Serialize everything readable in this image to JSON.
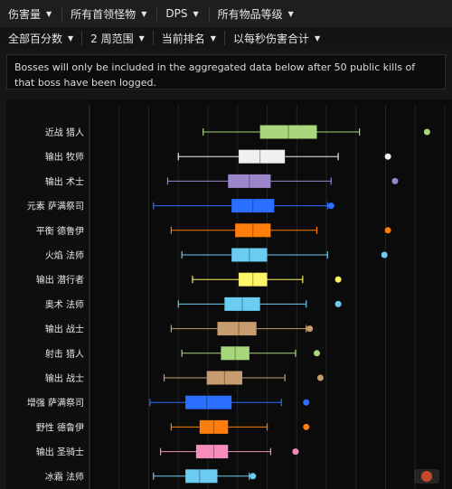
{
  "filters_top": [
    "伤害量",
    "所有首领怪物",
    "DPS",
    "所有物品等级"
  ],
  "filters_sub": [
    "全部百分数",
    "2 周范围",
    "当前排名",
    "以每秒伤害合计"
  ],
  "notice": "Bosses will only be included in the aggregated data below after 50 public kills of that boss have been logged.",
  "chart_data": {
    "type": "box",
    "grid": true,
    "categories": [
      "近战 猎人",
      "输出 牧师",
      "输出 术士",
      "元素 萨满祭司",
      "平衡 德鲁伊",
      "火焰 法师",
      "输出 潜行者",
      "奥术 法师",
      "输出 战士",
      "射击 猎人",
      "输出 战士",
      "增强 萨满祭司",
      "野性 德鲁伊",
      "输出 圣骑士",
      "冰霜 法师"
    ],
    "series": [
      {
        "min": 0.32,
        "q1": 0.48,
        "median": 0.56,
        "q3": 0.64,
        "max": 0.76,
        "outlier": 0.95,
        "color": "#a8d67a"
      },
      {
        "min": 0.25,
        "q1": 0.42,
        "median": 0.48,
        "q3": 0.55,
        "max": 0.7,
        "outlier": 0.84,
        "color": "#f0f0f0"
      },
      {
        "min": 0.22,
        "q1": 0.39,
        "median": 0.45,
        "q3": 0.51,
        "max": 0.68,
        "outlier": 0.86,
        "color": "#9b86cc"
      },
      {
        "min": 0.18,
        "q1": 0.4,
        "median": 0.46,
        "q3": 0.52,
        "max": 0.67,
        "outlier": 0.68,
        "color": "#2a6fff"
      },
      {
        "min": 0.23,
        "q1": 0.41,
        "median": 0.46,
        "q3": 0.51,
        "max": 0.64,
        "outlier": 0.84,
        "color": "#ff7d0a"
      },
      {
        "min": 0.26,
        "q1": 0.4,
        "median": 0.45,
        "q3": 0.5,
        "max": 0.67,
        "outlier": 0.83,
        "color": "#69ccf0"
      },
      {
        "min": 0.29,
        "q1": 0.42,
        "median": 0.46,
        "q3": 0.5,
        "max": 0.6,
        "outlier": 0.7,
        "color": "#fff569"
      },
      {
        "min": 0.25,
        "q1": 0.38,
        "median": 0.43,
        "q3": 0.48,
        "max": 0.61,
        "outlier": 0.7,
        "color": "#69ccf0"
      },
      {
        "min": 0.23,
        "q1": 0.36,
        "median": 0.42,
        "q3": 0.47,
        "max": 0.61,
        "outlier": 0.62,
        "color": "#c79c6e"
      },
      {
        "min": 0.26,
        "q1": 0.37,
        "median": 0.41,
        "q3": 0.45,
        "max": 0.58,
        "outlier": 0.64,
        "color": "#a8d67a"
      },
      {
        "min": 0.21,
        "q1": 0.33,
        "median": 0.38,
        "q3": 0.43,
        "max": 0.55,
        "outlier": 0.65,
        "color": "#c79c6e"
      },
      {
        "min": 0.17,
        "q1": 0.27,
        "median": 0.33,
        "q3": 0.4,
        "max": 0.54,
        "outlier": 0.61,
        "color": "#2a6fff"
      },
      {
        "min": 0.23,
        "q1": 0.31,
        "median": 0.35,
        "q3": 0.39,
        "max": 0.5,
        "outlier": 0.61,
        "color": "#ff7d0a"
      },
      {
        "min": 0.2,
        "q1": 0.3,
        "median": 0.35,
        "q3": 0.39,
        "max": 0.51,
        "outlier": 0.58,
        "color": "#f58cba"
      },
      {
        "min": 0.18,
        "q1": 0.27,
        "median": 0.31,
        "q3": 0.36,
        "max": 0.45,
        "outlier": 0.46,
        "color": "#69ccf0"
      }
    ]
  }
}
